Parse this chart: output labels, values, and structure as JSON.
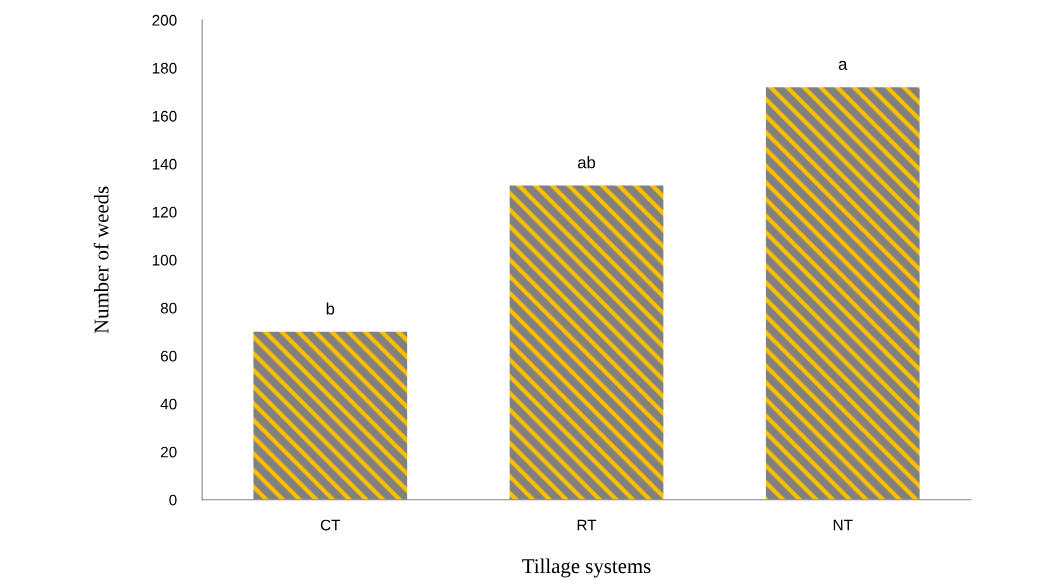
{
  "chart_data": {
    "type": "bar",
    "xlabel": "Tillage systems",
    "ylabel": "Number of weeds",
    "categories": [
      "CT",
      "RT",
      "NT"
    ],
    "values": [
      70,
      131,
      172
    ],
    "color": "#808080",
    "ylim": [
      0,
      200
    ],
    "yticks": [
      0,
      20,
      40,
      60,
      80,
      100,
      120,
      140,
      160,
      180,
      200
    ],
    "annotations": [
      {
        "text": "b",
        "x": "CT",
        "y": 70
      },
      {
        "text": "ab",
        "x": "RT",
        "y": 131
      },
      {
        "text": "a",
        "x": "NT",
        "y": 172
      }
    ]
  }
}
